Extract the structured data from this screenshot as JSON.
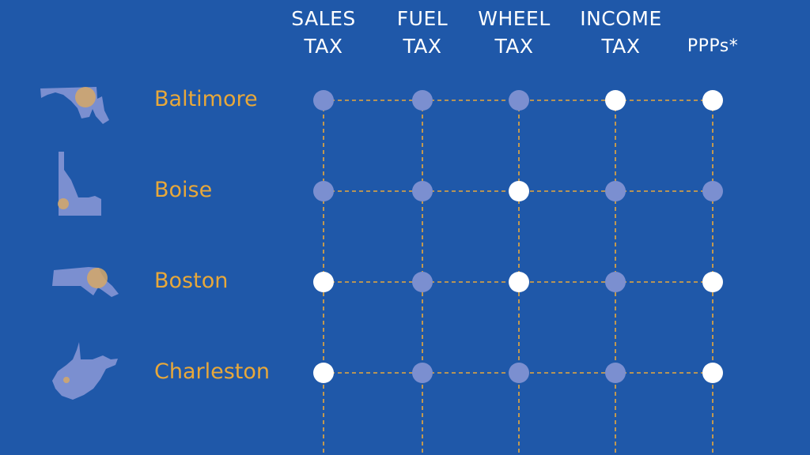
{
  "columns": [
    {
      "line1": "SALES",
      "line2": "TAX"
    },
    {
      "line1": "FUEL",
      "line2": "TAX"
    },
    {
      "line1": "WHEEL",
      "line2": "TAX"
    },
    {
      "line1": "INCOME",
      "line2": "TAX"
    },
    {
      "line1": "PPPs*",
      "line2": ""
    }
  ],
  "rows": [
    {
      "city": "Baltimore",
      "state_icon": "maryland-map-icon",
      "values": [
        false,
        false,
        false,
        true,
        true
      ]
    },
    {
      "city": "Boise",
      "state_icon": "idaho-map-icon",
      "values": [
        false,
        false,
        true,
        false,
        false
      ]
    },
    {
      "city": "Boston",
      "state_icon": "massachusetts-map-icon",
      "values": [
        true,
        false,
        true,
        false,
        true
      ]
    },
    {
      "city": "Charleston",
      "state_icon": "west-virginia-map-icon",
      "values": [
        true,
        false,
        false,
        false,
        true
      ]
    }
  ],
  "colors": {
    "background": "#1f58a9",
    "active_dot": "#ffffff",
    "inactive_dot": "#7b8fd0",
    "grid_line": "#e8a83a",
    "city_label": "#e8a83a"
  }
}
